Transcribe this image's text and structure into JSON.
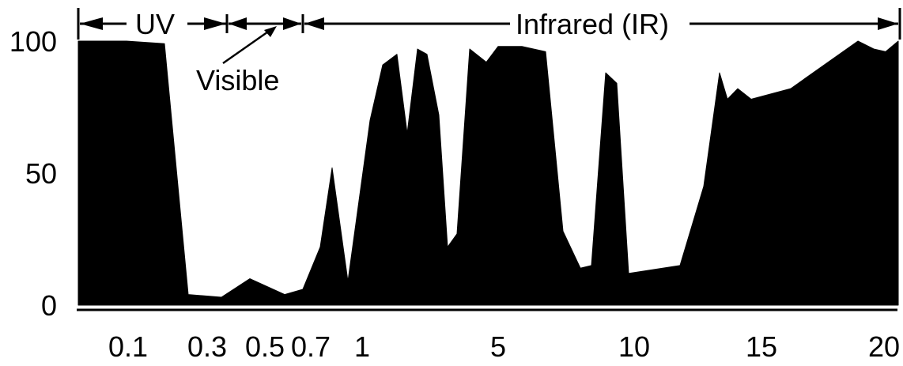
{
  "chart_data": {
    "type": "area",
    "title": "",
    "xlabel": "",
    "ylabel": "",
    "ylim": [
      0,
      100
    ],
    "y_ticks": [
      {
        "value": 0,
        "label": "0"
      },
      {
        "value": 50,
        "label": "50"
      },
      {
        "value": 100,
        "label": "100"
      }
    ],
    "x_ticks": [
      "0.1",
      "0.3",
      "0.5",
      "0.7",
      "1",
      "5",
      "10",
      "15",
      "20"
    ],
    "x_scale": "non-linear (piecewise)",
    "grid": false,
    "fill_color": "#000000",
    "bands": [
      {
        "label": "UV"
      },
      {
        "label": "Visible"
      },
      {
        "label": "Infrared (IR)"
      }
    ],
    "series": [
      {
        "x": [
          "0.1",
          "",
          "",
          "0.3",
          "",
          "0.5",
          "",
          "0.7",
          "",
          "",
          "1",
          "",
          "",
          "",
          "",
          "",
          "",
          "",
          "",
          "",
          "",
          "",
          "",
          "",
          "5",
          "",
          "",
          "",
          "",
          "",
          "",
          "10",
          "",
          "",
          "",
          "",
          "",
          "15",
          "",
          "",
          "",
          "20"
        ],
        "values": [
          100,
          100,
          99,
          4,
          3,
          10,
          4,
          6,
          22,
          52,
          9,
          70,
          91,
          95,
          65,
          97,
          95,
          72,
          22,
          27,
          97,
          92,
          98,
          98,
          96,
          28,
          14,
          15,
          88,
          84,
          12,
          15,
          45,
          88,
          78,
          82,
          78,
          82,
          100,
          97,
          96,
          100
        ]
      }
    ]
  }
}
